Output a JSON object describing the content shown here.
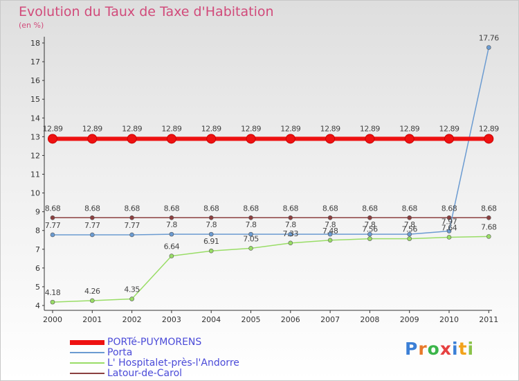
{
  "chart_data": {
    "type": "line",
    "title": "Evolution du Taux de Taxe d'Habitation",
    "subtitle": "(en %)",
    "xlabel": "",
    "ylabel": "(en %)",
    "ylim": [
      4,
      18
    ],
    "yticks": [
      "4",
      "5",
      "6",
      "7",
      "8",
      "9",
      "10",
      "11",
      "12",
      "13",
      "14",
      "15",
      "16",
      "17",
      "18"
    ],
    "categories": [
      "2000",
      "2001",
      "2002",
      "2003",
      "2004",
      "2005",
      "2006",
      "2007",
      "2008",
      "2009",
      "2010",
      "2011"
    ],
    "series": [
      {
        "name": "PORTé-PUYMORENS",
        "color": "#ee1111",
        "values": [
          12.89,
          12.89,
          12.89,
          12.89,
          12.89,
          12.89,
          12.89,
          12.89,
          12.89,
          12.89,
          12.89,
          12.89
        ],
        "labels": [
          "12.89",
          "12.89",
          "12.89",
          "12.89",
          "12.89",
          "12.89",
          "12.89",
          "12.89",
          "12.89",
          "12.89",
          "12.89",
          "12.89"
        ]
      },
      {
        "name": "Porta",
        "color": "#6b9bd1",
        "values": [
          7.77,
          7.77,
          7.77,
          7.8,
          7.8,
          7.8,
          7.8,
          7.8,
          7.8,
          7.8,
          7.97,
          17.76
        ],
        "labels": [
          "7.77",
          "7.77",
          "7.77",
          "7.8",
          "7.8",
          "7.8",
          "7.8",
          "7.8",
          "7.8",
          "7.8",
          "7.97",
          "17.76"
        ]
      },
      {
        "name": "L' Hospitalet-près-l'Andorre",
        "color": "#99dd66",
        "values": [
          4.18,
          4.26,
          4.35,
          6.64,
          6.91,
          7.05,
          7.33,
          7.48,
          7.56,
          7.56,
          7.64,
          7.68
        ],
        "labels": [
          "4.18",
          "4.26",
          "4.35",
          "6.64",
          "6.91",
          "7.05",
          "7.33",
          "7.48",
          "7.56",
          "7.56",
          "7.64",
          "7.68"
        ]
      },
      {
        "name": "Latour-de-Carol",
        "color": "#8b4040",
        "values": [
          8.68,
          8.68,
          8.68,
          8.68,
          8.68,
          8.68,
          8.68,
          8.68,
          8.68,
          8.68,
          8.68,
          8.68
        ],
        "labels": [
          "8.68",
          "8.68",
          "8.68",
          "8.68",
          "8.68",
          "8.68",
          "8.68",
          "8.68",
          "8.68",
          "8.68",
          "8.68",
          "8.68"
        ]
      }
    ]
  },
  "logo": {
    "text": "Proxiti",
    "letter_colors": [
      "#3b7fd6",
      "#e8792a",
      "#3bb54a",
      "#e64040",
      "#3b7fd6",
      "#f2a21a",
      "#8bc34a"
    ]
  }
}
